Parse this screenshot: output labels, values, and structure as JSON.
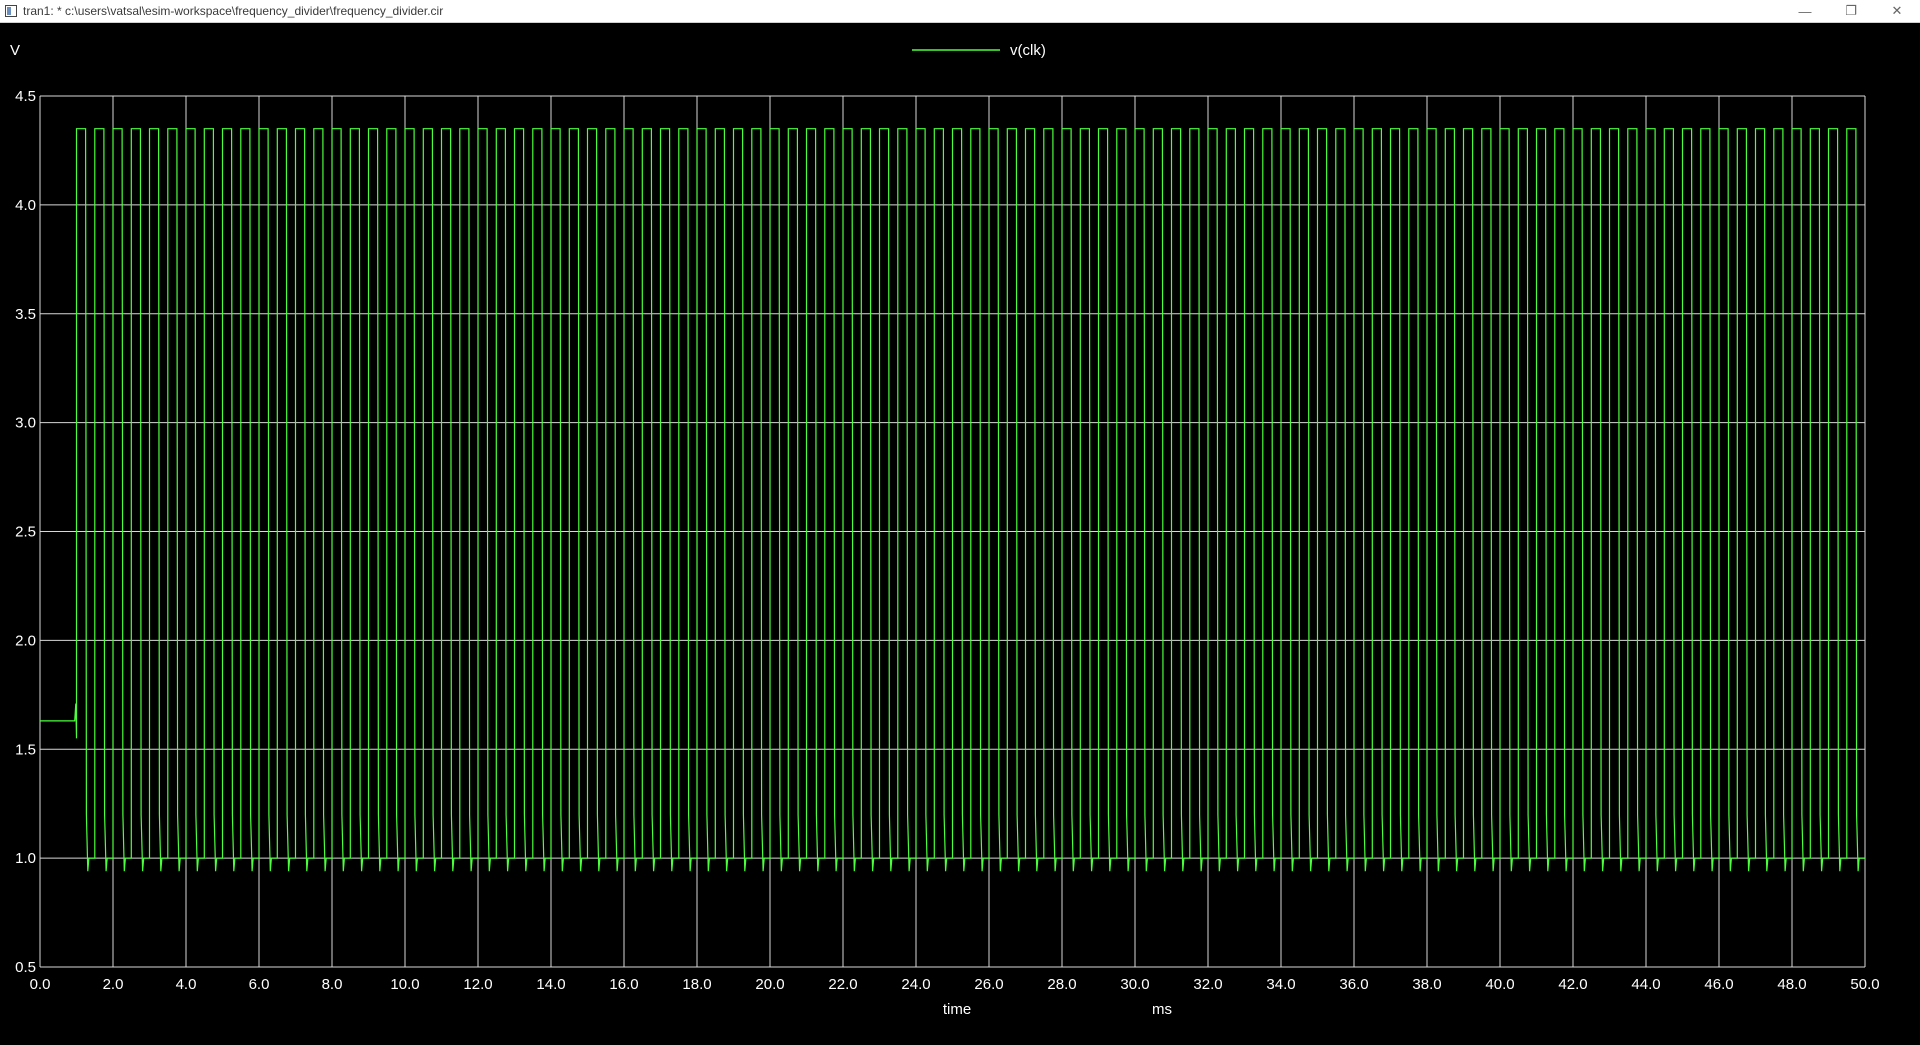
{
  "window": {
    "title": "tran1: * c:\\users\\vatsal\\esim-workspace\\frequency_divider\\frequency_divider.cir",
    "minimize_glyph": "—",
    "maximize_glyph": "❐",
    "close_glyph": "✕"
  },
  "colors": {
    "background": "#000000",
    "grid": "#d8d8d8",
    "trace": "#4cff3c",
    "text": "#ffffff"
  },
  "chart_data": {
    "type": "line",
    "title": "",
    "xlabel": "time",
    "xunit": "ms",
    "ylabel": "V",
    "xlim": [
      0,
      50
    ],
    "ylim": [
      0.5,
      4.5
    ],
    "grid": true,
    "legend_position": "top-center",
    "x_ticks": [
      "0.0",
      "2.0",
      "4.0",
      "6.0",
      "8.0",
      "10.0",
      "12.0",
      "14.0",
      "16.0",
      "18.0",
      "20.0",
      "22.0",
      "24.0",
      "26.0",
      "28.0",
      "30.0",
      "32.0",
      "34.0",
      "36.0",
      "38.0",
      "40.0",
      "42.0",
      "44.0",
      "46.0",
      "48.0",
      "50.0"
    ],
    "y_ticks": [
      "0.5",
      "1.0",
      "1.5",
      "2.0",
      "2.5",
      "3.0",
      "3.5",
      "4.0",
      "4.5"
    ],
    "series": [
      {
        "name": "v(clk)",
        "color": "#4cff3c",
        "signal": {
          "initial_level": 1.63,
          "start_time": 1.0,
          "period": 0.5,
          "high_level": 4.35,
          "low_level": 1.0,
          "undershoot": 0.94,
          "end_time": 50.0
        }
      }
    ]
  }
}
